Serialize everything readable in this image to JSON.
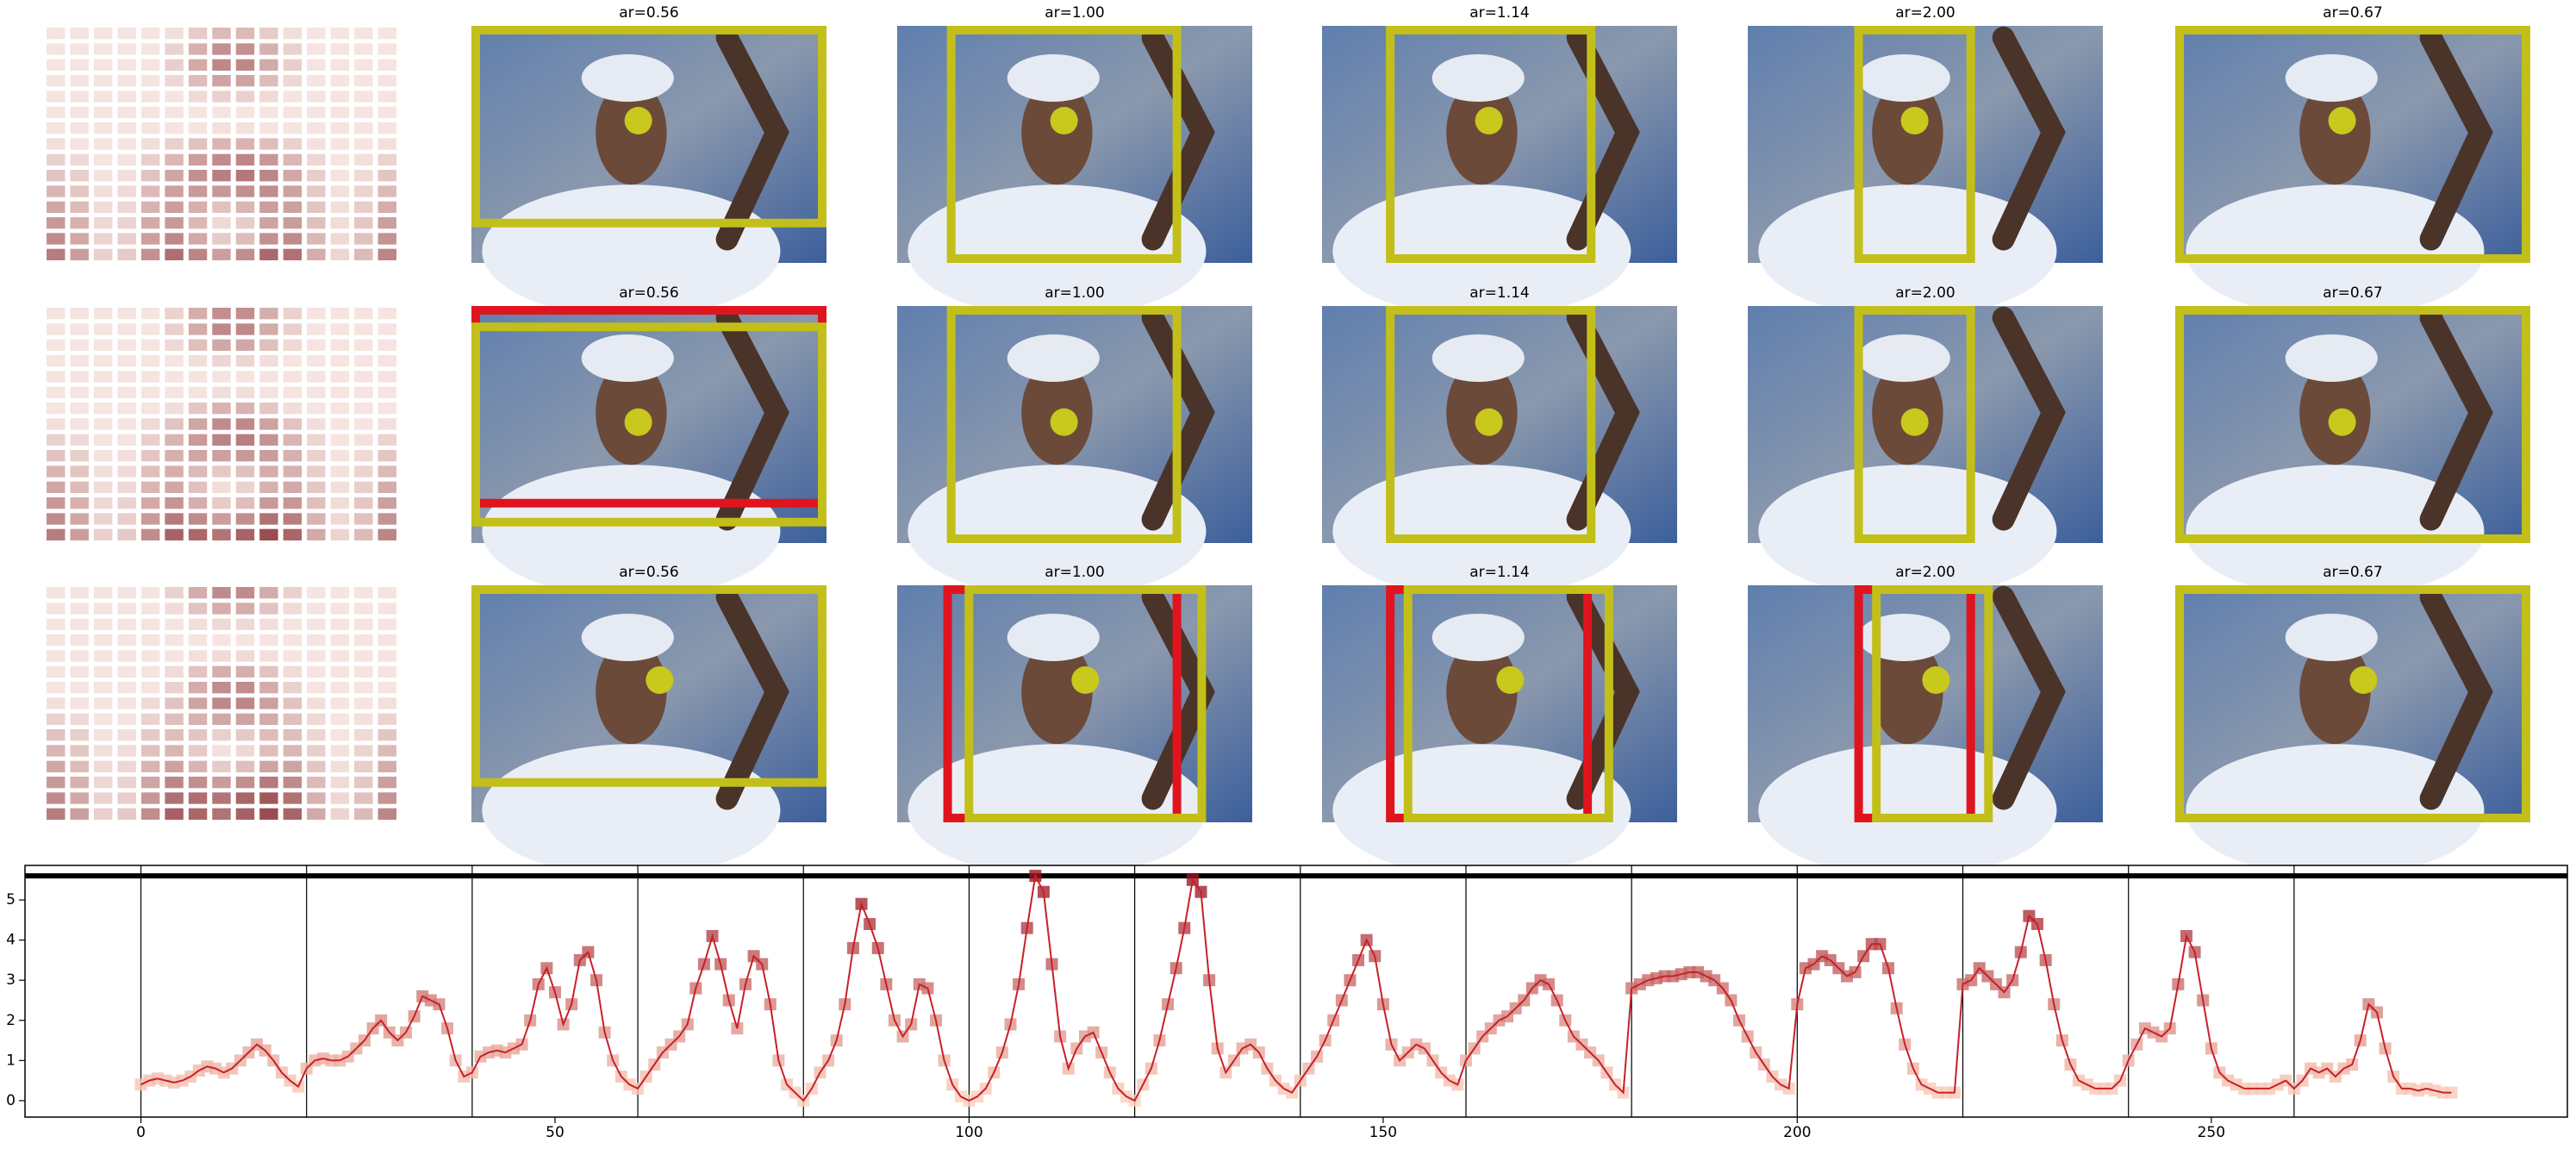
{
  "chart_data": {
    "type": "line",
    "panel_titles": [
      [
        "ar=0.56",
        "ar=1.00",
        "ar=1.14",
        "ar=2.00",
        "ar=0.67"
      ],
      [
        "ar=0.56",
        "ar=1.00",
        "ar=1.14",
        "ar=2.00",
        "ar=0.67"
      ],
      [
        "ar=0.56",
        "ar=1.00",
        "ar=1.14",
        "ar=2.00",
        "ar=0.67"
      ]
    ],
    "x": [
      0,
      1,
      2,
      3,
      4,
      5,
      6,
      7,
      8,
      9,
      10,
      11,
      12,
      13,
      14,
      15,
      16,
      17,
      18,
      19,
      20,
      21,
      22,
      23,
      24,
      25,
      26,
      27,
      28,
      29,
      30,
      31,
      32,
      33,
      34,
      35,
      36,
      37,
      38,
      39,
      40,
      41,
      42,
      43,
      44,
      45,
      46,
      47,
      48,
      49,
      50,
      51,
      52,
      53,
      54,
      55,
      56,
      57,
      58,
      59,
      60,
      61,
      62,
      63,
      64,
      65,
      66,
      67,
      68,
      69,
      70,
      71,
      72,
      73,
      74,
      75,
      76,
      77,
      78,
      79,
      80,
      81,
      82,
      83,
      84,
      85,
      86,
      87,
      88,
      89,
      90,
      91,
      92,
      93,
      94,
      95,
      96,
      97,
      98,
      99,
      100,
      101,
      102,
      103,
      104,
      105,
      106,
      107,
      108,
      109,
      110,
      111,
      112,
      113,
      114,
      115,
      116,
      117,
      118,
      119,
      120,
      121,
      122,
      123,
      124,
      125,
      126,
      127,
      128,
      129,
      130,
      131,
      132,
      133,
      134,
      135,
      136,
      137,
      138,
      139,
      140,
      141,
      142,
      143,
      144,
      145,
      146,
      147,
      148,
      149,
      150,
      151,
      152,
      153,
      154,
      155,
      156,
      157,
      158,
      159,
      160,
      161,
      162,
      163,
      164,
      165,
      166,
      167,
      168,
      169,
      170,
      171,
      172,
      173,
      174,
      175,
      176,
      177,
      178,
      179,
      180,
      181,
      182,
      183,
      184,
      185,
      186,
      187,
      188,
      189,
      190,
      191,
      192,
      193,
      194,
      195,
      196,
      197,
      198,
      199,
      200,
      201,
      202,
      203,
      204,
      205,
      206,
      207,
      208,
      209,
      210,
      211,
      212,
      213,
      214,
      215,
      216,
      217,
      218,
      219,
      220,
      221,
      222,
      223,
      224,
      225,
      226,
      227,
      228,
      229,
      230,
      231,
      232,
      233,
      234,
      235,
      236,
      237,
      238,
      239,
      240,
      241,
      242,
      243,
      244,
      245,
      246,
      247,
      248,
      249,
      250,
      251,
      252,
      253,
      254,
      255,
      256,
      257,
      258,
      259,
      260,
      261,
      262,
      263,
      264,
      265,
      266,
      267,
      268,
      269,
      270,
      271,
      272,
      273,
      274,
      275,
      276,
      277,
      278,
      279
    ],
    "values": [
      0.4,
      0.5,
      0.55,
      0.5,
      0.45,
      0.5,
      0.6,
      0.75,
      0.85,
      0.8,
      0.7,
      0.8,
      1.0,
      1.2,
      1.4,
      1.25,
      1.0,
      0.7,
      0.5,
      0.35,
      0.8,
      1.0,
      1.05,
      1.0,
      1.0,
      1.1,
      1.3,
      1.5,
      1.8,
      2.0,
      1.7,
      1.5,
      1.7,
      2.1,
      2.6,
      2.5,
      2.4,
      1.8,
      1.0,
      0.6,
      0.7,
      1.1,
      1.2,
      1.25,
      1.2,
      1.3,
      1.4,
      2.0,
      2.9,
      3.3,
      2.7,
      1.9,
      2.4,
      3.5,
      3.7,
      3.0,
      1.7,
      1.0,
      0.6,
      0.4,
      0.3,
      0.6,
      0.9,
      1.2,
      1.4,
      1.6,
      1.9,
      2.8,
      3.4,
      4.1,
      3.4,
      2.5,
      1.8,
      2.9,
      3.6,
      3.4,
      2.4,
      1.0,
      0.4,
      0.2,
      0.0,
      0.3,
      0.7,
      1.0,
      1.5,
      2.4,
      3.8,
      4.9,
      4.4,
      3.8,
      2.9,
      2.0,
      1.6,
      1.9,
      2.9,
      2.8,
      2.0,
      1.0,
      0.4,
      0.1,
      0.0,
      0.1,
      0.3,
      0.7,
      1.2,
      1.9,
      2.9,
      4.3,
      5.6,
      5.2,
      3.4,
      1.6,
      0.8,
      1.3,
      1.6,
      1.7,
      1.2,
      0.7,
      0.3,
      0.1,
      0.0,
      0.4,
      0.8,
      1.5,
      2.4,
      3.3,
      4.3,
      5.5,
      5.2,
      3.0,
      1.3,
      0.7,
      1.0,
      1.3,
      1.4,
      1.2,
      0.8,
      0.5,
      0.3,
      0.2,
      0.5,
      0.8,
      1.1,
      1.5,
      2.0,
      2.5,
      3.0,
      3.5,
      4.0,
      3.6,
      2.4,
      1.4,
      1.0,
      1.2,
      1.4,
      1.3,
      1.0,
      0.7,
      0.5,
      0.4,
      1.0,
      1.3,
      1.6,
      1.8,
      2.0,
      2.1,
      2.3,
      2.5,
      2.8,
      3.0,
      2.9,
      2.5,
      2.0,
      1.6,
      1.4,
      1.2,
      1.0,
      0.7,
      0.4,
      0.2,
      2.8,
      2.9,
      3.0,
      3.05,
      3.1,
      3.1,
      3.15,
      3.2,
      3.2,
      3.1,
      3.0,
      2.8,
      2.5,
      2.0,
      1.6,
      1.2,
      0.9,
      0.6,
      0.4,
      0.3,
      2.4,
      3.3,
      3.4,
      3.6,
      3.5,
      3.3,
      3.1,
      3.2,
      3.6,
      3.9,
      3.9,
      3.3,
      2.3,
      1.4,
      0.8,
      0.4,
      0.3,
      0.2,
      0.2,
      0.2,
      2.9,
      3.0,
      3.3,
      3.1,
      2.9,
      2.7,
      3.0,
      3.7,
      4.6,
      4.4,
      3.5,
      2.4,
      1.5,
      0.9,
      0.5,
      0.4,
      0.3,
      0.3,
      0.3,
      0.5,
      1.0,
      1.4,
      1.8,
      1.7,
      1.6,
      1.8,
      2.9,
      4.1,
      3.7,
      2.5,
      1.3,
      0.7,
      0.5,
      0.4,
      0.3,
      0.3,
      0.3,
      0.3,
      0.4,
      0.5,
      0.3,
      0.5,
      0.8,
      0.7,
      0.8,
      0.6,
      0.8,
      0.9,
      1.5,
      2.4,
      2.2,
      1.3,
      0.6,
      0.3,
      0.3,
      0.25,
      0.3,
      0.25,
      0.2,
      0.2
    ],
    "color": "#c8202a",
    "xlim": [
      -14,
      293
    ],
    "ylim": [
      -0.41,
      5.86
    ],
    "xticks": [
      0,
      50,
      100,
      150,
      200,
      250
    ],
    "yticks": [
      0,
      1,
      2,
      3,
      4,
      5
    ],
    "vlines": [
      0,
      20,
      40,
      60,
      80,
      100,
      120,
      140,
      160,
      180,
      200,
      220,
      240,
      260
    ],
    "hline": 5.6
  }
}
